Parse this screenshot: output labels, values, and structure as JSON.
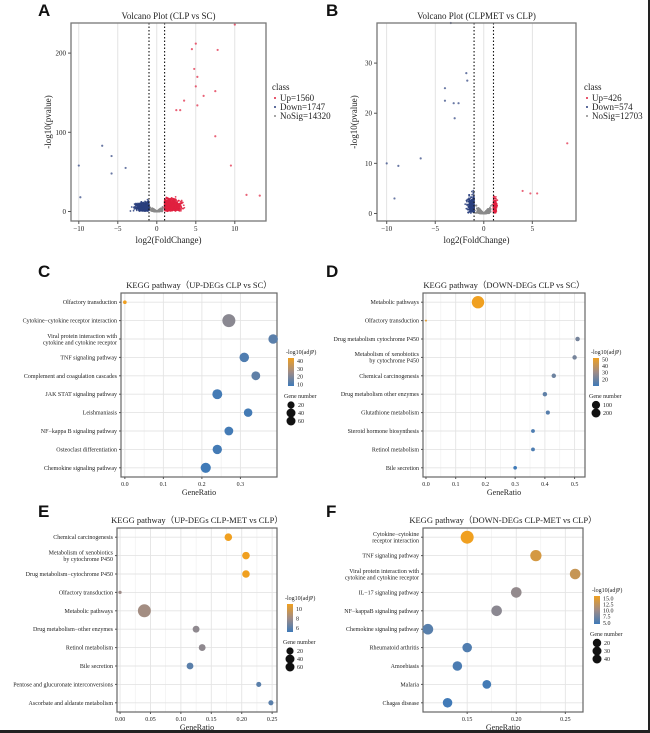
{
  "panels": {
    "A": "A",
    "B": "B",
    "C": "C",
    "D": "D",
    "E": "E",
    "F": "F"
  },
  "colors": {
    "up": "#e0213f",
    "down": "#2a3f7e",
    "nosig": "#8a8a8a",
    "grad_high": "#f0a020",
    "grad_low": "#3f7ab8",
    "grad_mid": "#a08c86"
  },
  "chart_data": [
    {
      "id": "A",
      "type": "scatter",
      "title": "Volcano Plot (CLP vs SC)",
      "xlabel": "log2(FoldChange)",
      "ylabel": "-log10(pvalue)",
      "xlim": [
        -11,
        14
      ],
      "ylim": [
        -12,
        238
      ],
      "xticks": [
        -10,
        -5,
        0,
        5,
        10
      ],
      "yticks": [
        0,
        100,
        200
      ],
      "threshold_lines_x": [
        -1,
        1
      ],
      "legend": {
        "title": "class",
        "position": "right",
        "entries": [
          "Up=1560",
          "Down=1747",
          "NoSig=14320"
        ]
      },
      "summary": {
        "Up": 1560,
        "Down": 1747,
        "NoSig": 14320
      },
      "highlight_points": [
        {
          "x": -10,
          "y": 58,
          "class": "down"
        },
        {
          "x": -9.8,
          "y": 18,
          "class": "down"
        },
        {
          "x": -7,
          "y": 83,
          "class": "down"
        },
        {
          "x": -5.8,
          "y": 70,
          "class": "down"
        },
        {
          "x": -5.8,
          "y": 48,
          "class": "down"
        },
        {
          "x": -4,
          "y": 55,
          "class": "down"
        },
        {
          "x": 5,
          "y": 212,
          "class": "up"
        },
        {
          "x": 4.5,
          "y": 205,
          "class": "up"
        },
        {
          "x": 7.8,
          "y": 204,
          "class": "up"
        },
        {
          "x": 4.8,
          "y": 180,
          "class": "up"
        },
        {
          "x": 5.2,
          "y": 170,
          "class": "up"
        },
        {
          "x": 5,
          "y": 158,
          "class": "up"
        },
        {
          "x": 7.5,
          "y": 152,
          "class": "up"
        },
        {
          "x": 6,
          "y": 146,
          "class": "up"
        },
        {
          "x": 3.5,
          "y": 140,
          "class": "up"
        },
        {
          "x": 5.2,
          "y": 134,
          "class": "up"
        },
        {
          "x": 2.5,
          "y": 128,
          "class": "up"
        },
        {
          "x": 3,
          "y": 128,
          "class": "up"
        },
        {
          "x": 10,
          "y": 236,
          "class": "up"
        },
        {
          "x": 7.5,
          "y": 95,
          "class": "up"
        },
        {
          "x": 9.5,
          "y": 58,
          "class": "up"
        },
        {
          "x": 13.2,
          "y": 20,
          "class": "up"
        },
        {
          "x": 11.5,
          "y": 21,
          "class": "up"
        }
      ]
    },
    {
      "id": "B",
      "type": "scatter",
      "title": "Volcano Plot (CLPMET vs CLP)",
      "xlabel": "log2(FoldChange)",
      "ylabel": "-log10(pvalue)",
      "xlim": [
        -11,
        9.5
      ],
      "ylim": [
        -1.5,
        38
      ],
      "xticks": [
        -10,
        -5,
        0,
        5
      ],
      "yticks": [
        0,
        10,
        20,
        30
      ],
      "threshold_lines_x": [
        -1,
        1
      ],
      "legend": {
        "title": "class",
        "position": "right",
        "entries": [
          "Up=426",
          "Down=574",
          "NoSig=12703"
        ]
      },
      "summary": {
        "Up": 426,
        "Down": 574,
        "NoSig": 12703
      },
      "highlight_points": [
        {
          "x": -3.4,
          "y": 38,
          "class": "down"
        },
        {
          "x": -1.8,
          "y": 28,
          "class": "down"
        },
        {
          "x": -1.7,
          "y": 26.5,
          "class": "down"
        },
        {
          "x": -4,
          "y": 25,
          "class": "down"
        },
        {
          "x": -4,
          "y": 22.5,
          "class": "down"
        },
        {
          "x": -3.1,
          "y": 22,
          "class": "down"
        },
        {
          "x": -2.6,
          "y": 22,
          "class": "down"
        },
        {
          "x": -3,
          "y": 19,
          "class": "down"
        },
        {
          "x": -10,
          "y": 10,
          "class": "down"
        },
        {
          "x": -6.5,
          "y": 11,
          "class": "down"
        },
        {
          "x": -8.8,
          "y": 9.5,
          "class": "down"
        },
        {
          "x": -9.2,
          "y": 3,
          "class": "down"
        },
        {
          "x": 8.6,
          "y": 14,
          "class": "up"
        },
        {
          "x": 5.5,
          "y": 4,
          "class": "up"
        },
        {
          "x": 4.8,
          "y": 4,
          "class": "up"
        },
        {
          "x": 4,
          "y": 4.5,
          "class": "up"
        }
      ]
    },
    {
      "id": "C",
      "type": "scatter",
      "subtype": "dotplot",
      "title": "KEGG pathway（UP-DEGs CLP vs SC）",
      "xlabel": "GeneRatio",
      "xlim": [
        -0.01,
        0.395
      ],
      "xticks": [
        0.0,
        0.1,
        0.2,
        0.3
      ],
      "xtick_labels": [
        "0.0",
        "0.1",
        "0.2",
        "0.3"
      ],
      "categories": [
        "Olfactory transduction",
        "Cytokine−cytokine receptor interaction",
        "Viral protein interaction with\ncytokine and cytokine receptor",
        "TNF signaling pathway",
        "Complement and coagulation cascades",
        "JAK STAT signaling pathway",
        "Leishmaniasis",
        "NF−kappa B signaling pathway",
        "Osteoclast differentiation",
        "Chemokine signaling pathway"
      ],
      "gene_ratio": [
        0.0,
        0.27,
        0.385,
        0.31,
        0.34,
        0.24,
        0.32,
        0.27,
        0.24,
        0.21
      ],
      "neg_log10_padj": [
        44,
        22,
        13,
        11,
        14,
        9,
        9,
        9,
        9,
        8
      ],
      "gene_number": [
        5,
        65,
        35,
        35,
        30,
        38,
        28,
        30,
        34,
        40
      ],
      "color_legend": {
        "title": "-log10(adjP)",
        "ticks": [
          10,
          20,
          30,
          40
        ],
        "range": [
          8,
          44
        ]
      },
      "size_legend": {
        "title": "Gene number",
        "values": [
          20,
          40,
          60
        ]
      }
    },
    {
      "id": "D",
      "type": "scatter",
      "subtype": "dotplot",
      "title": "KEGG pathway（DOWN-DEGs CLP vs SC）",
      "xlabel": "GeneRatio",
      "xlim": [
        -0.01,
        0.535
      ],
      "xticks": [
        0.0,
        0.1,
        0.2,
        0.3,
        0.4,
        0.5
      ],
      "xtick_labels": [
        "0.0",
        "0.1",
        "0.2",
        "0.3",
        "0.4",
        "0.5"
      ],
      "categories": [
        "Metabolic pathways",
        "Olfactory transduction",
        "Drug metabolism cytochrome P450",
        "Metabolism of xenobiotics\nby cytochrome P450",
        "Chemical carcinogenesis",
        "Drug metabolism other enzymes",
        "Glutathione metabolism",
        "Steroid hormone biosynthesis",
        "Retinol metabolism",
        "Bile secretion"
      ],
      "gene_ratio": [
        0.175,
        0.0,
        0.51,
        0.5,
        0.43,
        0.4,
        0.41,
        0.36,
        0.36,
        0.3
      ],
      "neg_log10_padj": [
        52,
        48,
        22,
        22,
        20,
        17,
        15,
        13,
        13,
        10
      ],
      "gene_number": [
        230,
        5,
        30,
        30,
        30,
        30,
        25,
        22,
        22,
        20
      ],
      "color_legend": {
        "title": "-log10(adjP)",
        "ticks": [
          20,
          30,
          40,
          50
        ],
        "range": [
          10,
          52
        ]
      },
      "size_legend": {
        "title": "Gene number",
        "values": [
          100,
          200
        ]
      }
    },
    {
      "id": "E",
      "type": "scatter",
      "subtype": "dotplot",
      "title": "KEGG pathway（UP-DEGs CLP-MET vs CLP）",
      "xlabel": "GeneRatio",
      "xlim": [
        -0.005,
        0.258
      ],
      "xticks": [
        0.0,
        0.05,
        0.1,
        0.15,
        0.2,
        0.25
      ],
      "xtick_labels": [
        "0.00",
        "0.05",
        "0.10",
        "0.15",
        "0.20",
        "0.25"
      ],
      "categories": [
        "Chemical carcinogenesis",
        "Metabolism of xenobiotics\nby cytochrome P450",
        "Drug metabolism−cytochrome P450",
        "Olfactory transduction",
        "Metabolic pathways",
        "Drug metabolism−other enzymes",
        "Retinol metabolism",
        "Bile secretion",
        "Pentose and glucuronate interconversions",
        "Ascorbate and aldarate metabolism"
      ],
      "gene_ratio": [
        0.178,
        0.207,
        0.207,
        0.0,
        0.04,
        0.125,
        0.135,
        0.115,
        0.228,
        0.248
      ],
      "neg_log10_padj": [
        11,
        11,
        11,
        8,
        8.2,
        7.6,
        7.6,
        6,
        6,
        6
      ],
      "gene_number": [
        22,
        22,
        22,
        4,
        65,
        18,
        18,
        18,
        10,
        10
      ],
      "color_legend": {
        "title": "-log10(adjP)",
        "ticks": [
          6,
          8,
          10
        ],
        "range": [
          5.2,
          11
        ]
      },
      "size_legend": {
        "title": "Gene number",
        "values": [
          20,
          40,
          60
        ]
      }
    },
    {
      "id": "F",
      "type": "scatter",
      "subtype": "dotplot",
      "title": "KEGG pathway（DOWN-DEGs CLP-MET vs CLP）",
      "xlabel": "GeneRatio",
      "xlim": [
        0.105,
        0.268
      ],
      "xticks": [
        0.15,
        0.2,
        0.25
      ],
      "xtick_labels": [
        "0.15",
        "0.20",
        "0.25"
      ],
      "categories": [
        "Cytokine−cytokine\nreceptor interaction",
        "TNF signaling pathway",
        "Viral protein interaction with\ncytokine and cytokine receptor",
        "IL−17 signaling pathway",
        "NF−kappaB signaling pathway",
        "Chemokine signaling pathway",
        "Rheumatoid arthritis",
        "Amoebiasis",
        "Malaria",
        "Chagas disease"
      ],
      "gene_ratio": [
        0.15,
        0.22,
        0.26,
        0.2,
        0.18,
        0.11,
        0.15,
        0.14,
        0.17,
        0.13
      ],
      "neg_log10_padj": [
        16,
        14,
        13,
        9.5,
        9,
        6,
        5.5,
        5.2,
        4.8,
        4.6
      ],
      "gene_number": [
        48,
        36,
        32,
        32,
        32,
        32,
        26,
        26,
        22,
        26
      ],
      "color_legend": {
        "title": "-log10(adjP)",
        "ticks": [
          5.0,
          7.5,
          10.0,
          12.5,
          15.0
        ],
        "tick_labels": [
          "5.0",
          "7.5",
          "10.0",
          "12.5",
          "15.0"
        ],
        "range": [
          4.5,
          16
        ]
      },
      "size_legend": {
        "title": "Gene number",
        "values": [
          20,
          30,
          40
        ]
      }
    }
  ]
}
